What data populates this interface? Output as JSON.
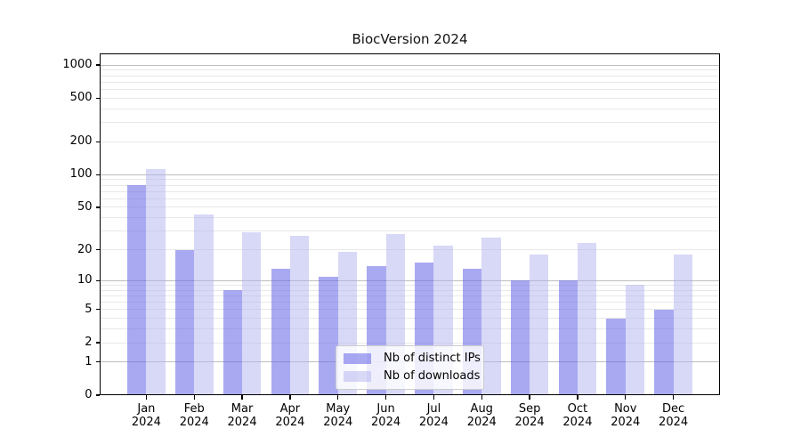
{
  "title": "BiocVersion 2024",
  "chart_data": {
    "type": "bar",
    "title": "BiocVersion 2024",
    "xlabel": "",
    "ylabel": "",
    "yscale": "log10(1+y)",
    "ylim": [
      0,
      1275
    ],
    "yticks": [
      0,
      1,
      2,
      5,
      10,
      20,
      50,
      100,
      200,
      500,
      1000
    ],
    "grid": true,
    "categories": [
      {
        "month": "Jan",
        "year": "2024"
      },
      {
        "month": "Feb",
        "year": "2024"
      },
      {
        "month": "Mar",
        "year": "2024"
      },
      {
        "month": "Apr",
        "year": "2024"
      },
      {
        "month": "May",
        "year": "2024"
      },
      {
        "month": "Jun",
        "year": "2024"
      },
      {
        "month": "Jul",
        "year": "2024"
      },
      {
        "month": "Aug",
        "year": "2024"
      },
      {
        "month": "Sep",
        "year": "2024"
      },
      {
        "month": "Oct",
        "year": "2024"
      },
      {
        "month": "Nov",
        "year": "2024"
      },
      {
        "month": "Dec",
        "year": "2024"
      }
    ],
    "series": [
      {
        "name": "Nb of distinct IPs",
        "color": "#6a6ae8",
        "alpha": 0.58,
        "values": [
          80,
          20,
          8,
          13,
          11,
          14,
          15,
          13,
          10,
          10,
          4,
          5
        ]
      },
      {
        "name": "Nb of downloads",
        "color": "#b2b2f0",
        "alpha": 0.5,
        "values": [
          112,
          43,
          29,
          27,
          19,
          28,
          22,
          26,
          18,
          23,
          9,
          18
        ]
      }
    ],
    "legend": {
      "position": "lower center",
      "entries": [
        "Nb of distinct IPs",
        "Nb of downloads"
      ]
    }
  },
  "colors": {
    "background": "#ffffff",
    "axis": "#000000",
    "grid_major": "#bdbdbd",
    "grid_minor": "#e8e8e8",
    "text": "#111111"
  }
}
